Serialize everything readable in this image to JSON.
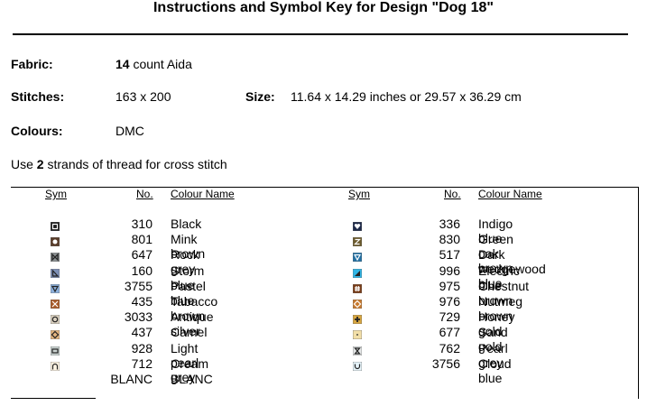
{
  "title": "Instructions and Symbol Key for Design \"Dog 18\"",
  "fabric": {
    "label": "Fabric:",
    "count": "14",
    "rest": " count Aida"
  },
  "stitches": {
    "label": "Stitches:",
    "value": "163 x 200"
  },
  "size": {
    "label": "Size:",
    "value": "11.64 x 14.29 inches or 29.57 x 36.29 cm"
  },
  "colours": {
    "label": "Colours:",
    "value": "DMC"
  },
  "instruction": {
    "before": "Use ",
    "count": "2",
    "after": " strands of thread for cross stitch"
  },
  "key_headers": {
    "sym": "Sym",
    "no": "No.",
    "name": "Colour Name"
  },
  "left_colours": [
    {
      "no": "310",
      "name": "Black",
      "color": "#1c1c1c",
      "icon": "square-outline-icon"
    },
    {
      "no": "801",
      "name": "Mink brown",
      "color": "#5a3e2b",
      "icon": "circle-icon"
    },
    {
      "no": "647",
      "name": "Rock grey",
      "color": "#8a8f91",
      "icon": "bowtie-icon"
    },
    {
      "no": "160",
      "name": "Storm blue",
      "color": "#7d8fb5",
      "icon": "right-triangle-icon"
    },
    {
      "no": "3755",
      "name": "Pastel blue",
      "color": "#8db0dc",
      "icon": "down-triangle-icon"
    },
    {
      "no": "435",
      "name": "Tabacco brown",
      "color": "#a85a28",
      "icon": "x-mark-icon"
    },
    {
      "no": "3033",
      "name": "Antique silver",
      "color": "#d9cfbe",
      "icon": "circle-outline-icon"
    },
    {
      "no": "437",
      "name": "Camel",
      "color": "#e2b47e",
      "icon": "diamond-icon"
    },
    {
      "no": "928",
      "name": "Light pearl grey",
      "color": "#c9d2d0",
      "icon": "inner-square-icon"
    },
    {
      "no": "712",
      "name": "Cream",
      "color": "#fff5e4",
      "icon": "arch-icon"
    },
    {
      "no": "BLANC",
      "name": "BLANC",
      "color": "#ffffff",
      "icon": "blank-icon"
    }
  ],
  "right_colours": [
    {
      "no": "336",
      "name": "Indigo blue",
      "color": "#1e2a4a",
      "icon": "heart-icon"
    },
    {
      "no": "830",
      "name": "Green oak brown",
      "color": "#6b5a2c",
      "icon": "z-letter-icon"
    },
    {
      "no": "517",
      "name": "Dark wedgewood blue",
      "color": "#2270a4",
      "icon": "down-triangle-icon"
    },
    {
      "no": "996",
      "name": "Electric blue",
      "color": "#30b6e6",
      "icon": "corner-triangle-icon"
    },
    {
      "no": "975",
      "name": "Chestnut brown",
      "color": "#7a3e1a",
      "icon": "hash-icon"
    },
    {
      "no": "976",
      "name": "Nutmeg brown",
      "color": "#c97a2e",
      "icon": "diamond-icon"
    },
    {
      "no": "729",
      "name": "Honey gold",
      "color": "#d7a640",
      "icon": "plus-icon"
    },
    {
      "no": "677",
      "name": "Sand gold",
      "color": "#f2dfa8",
      "icon": "dot-icon"
    },
    {
      "no": "762",
      "name": "Pearl grey",
      "color": "#e4e6e6",
      "icon": "hourglass-icon"
    },
    {
      "no": "3756",
      "name": "Cloud blue",
      "color": "#e6f4fa",
      "icon": "cup-icon"
    }
  ]
}
